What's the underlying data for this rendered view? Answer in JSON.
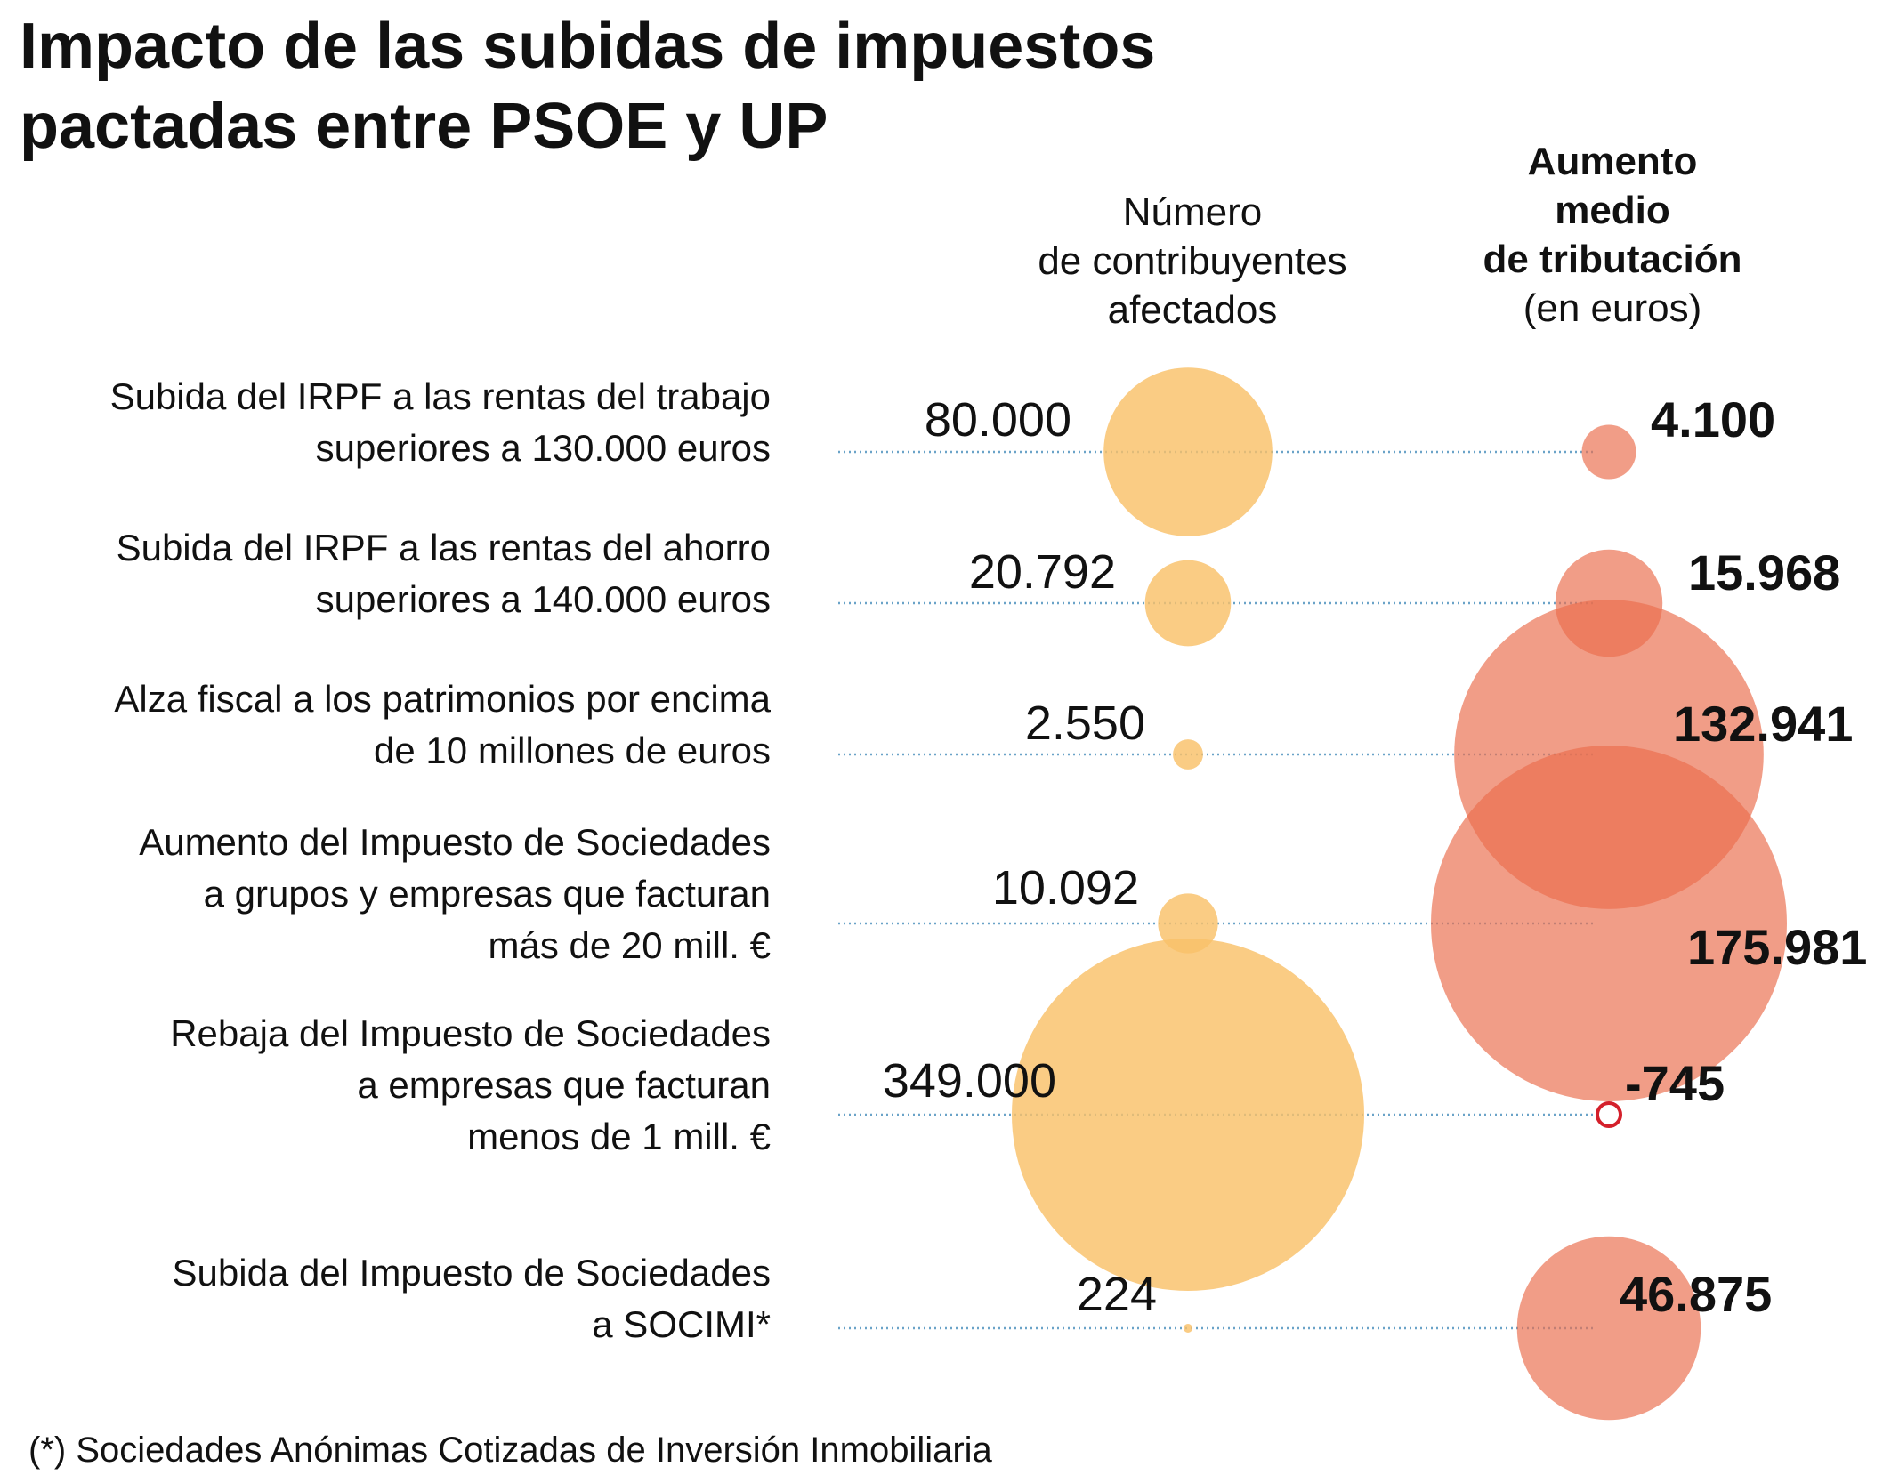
{
  "title_lines": [
    "Impacto de las subidas de impuestos",
    "pactadas entre PSOE y UP"
  ],
  "column_headers": {
    "count_lines": [
      "Número",
      "de contribuyentes",
      "afectados"
    ],
    "value_bold_lines": [
      "Aumento",
      "medio",
      "de tributación"
    ],
    "value_unit_line": "(en euros)"
  },
  "footnote": "(*) Sociedades Anónimas Cotizadas de Inversión Inmobiliaria",
  "colors": {
    "count_bubble": "#f9c169",
    "value_bubble": "#ea6f4e",
    "negative_bubble_stroke": "#d4202b",
    "guide_line": "#6aa3c8"
  },
  "chart_data": {
    "type": "bubble",
    "categories": [
      {
        "label_lines": [
          "Subida del IRPF a las rentas del trabajo",
          "superiores a 130.000 euros"
        ]
      },
      {
        "label_lines": [
          "Subida del IRPF a las rentas del ahorro",
          "superiores a 140.000 euros"
        ]
      },
      {
        "label_lines": [
          "Alza fiscal a los patrimonios por encima",
          "de 10 millones de euros"
        ]
      },
      {
        "label_lines": [
          "Aumento del Impuesto de Sociedades",
          "a grupos y empresas que facturan",
          "más de 20 mill. €"
        ]
      },
      {
        "label_lines": [
          "Rebaja del Impuesto de Sociedades",
          "a empresas que facturan",
          "menos de 1 mill. €"
        ]
      },
      {
        "label_lines": [
          "Subida del Impuesto de Sociedades",
          "a SOCIMI*"
        ]
      }
    ],
    "series": [
      {
        "values": [
          80000,
          20792,
          2550,
          10092,
          349000,
          224
        ],
        "labels": [
          "80.000",
          "20.792",
          "2.550",
          "10.092",
          "349.000",
          "224"
        ]
      },
      {
        "values": [
          4100,
          15968,
          132941,
          175981,
          -745,
          46875
        ],
        "labels": [
          "4.100",
          "15.968",
          "132.941",
          "175.981",
          "-745",
          "46.875"
        ]
      }
    ]
  }
}
